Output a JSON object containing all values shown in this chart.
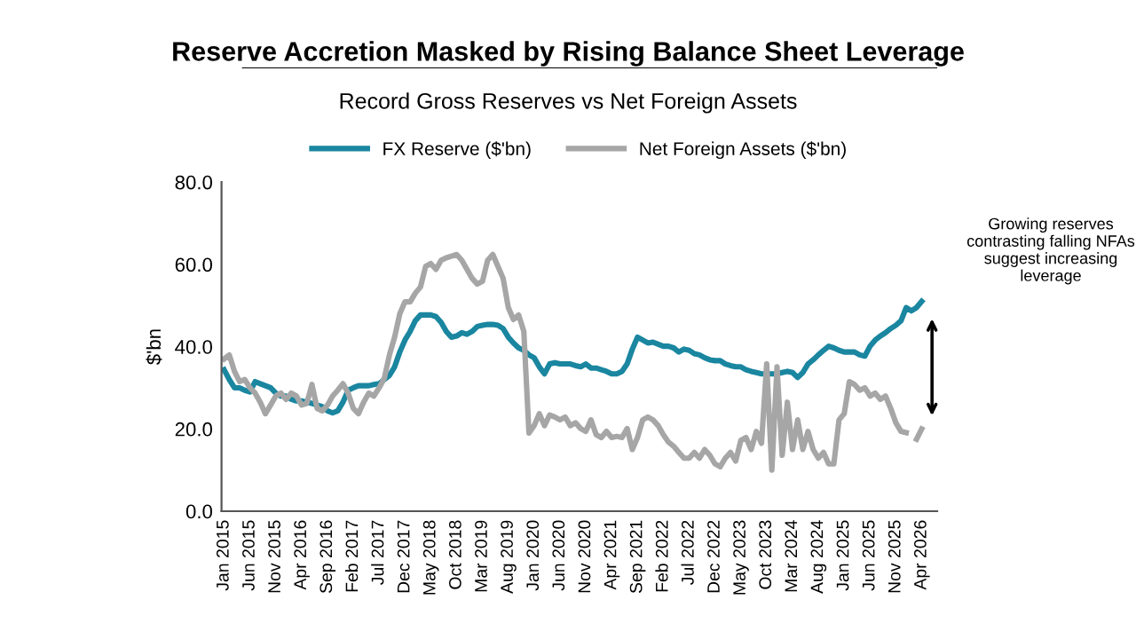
{
  "chart_data": {
    "type": "line",
    "title": "Reserve Accretion Masked by Rising Balance Sheet Leverage",
    "subtitle": "Record Gross Reserves vs Net Foreign Assets",
    "ylabel": "$'bn",
    "categories": [
      "Jan 2015",
      null,
      null,
      null,
      null,
      "Jun 2015",
      null,
      null,
      null,
      null,
      "Nov 2015",
      null,
      null,
      null,
      null,
      "Apr 2016",
      null,
      null,
      null,
      null,
      "Sep 2016",
      null,
      null,
      null,
      null,
      "Feb 2017",
      null,
      null,
      null,
      null,
      "Jul 2017",
      null,
      null,
      null,
      null,
      "Dec 2017",
      null,
      null,
      null,
      null,
      "May 2018",
      null,
      null,
      null,
      null,
      "Oct 2018",
      null,
      null,
      null,
      null,
      "Mar 2019",
      null,
      null,
      null,
      null,
      "Aug 2019",
      null,
      null,
      null,
      null,
      "Jan 2020",
      null,
      null,
      null,
      null,
      "Jun 2020",
      null,
      null,
      null,
      null,
      "Nov 2020",
      null,
      null,
      null,
      null,
      "Apr 2021",
      null,
      null,
      null,
      null,
      "Sep 2021",
      null,
      null,
      null,
      null,
      "Feb 2022",
      null,
      null,
      null,
      null,
      "Jul 2022",
      null,
      null,
      null,
      null,
      "Dec 2022",
      null,
      null,
      null,
      null,
      "May 2023",
      null,
      null,
      null,
      null,
      "Oct 2023",
      null,
      null,
      null,
      null,
      "Mar 2024",
      null,
      null,
      null,
      null,
      "Aug 2024",
      null,
      null,
      null,
      null,
      "Jan 2025",
      null,
      null,
      null,
      null,
      "Jun 2025",
      null,
      null,
      null,
      null,
      "Nov 2025",
      null,
      null,
      null,
      null,
      "Apr 2026"
    ],
    "series": [
      {
        "name": "FX Reserve ($'bn)",
        "color": "#1a86a0",
        "values": [
          34.4,
          32,
          30,
          30,
          29.4,
          29,
          31.5,
          31,
          30.5,
          30,
          28.7,
          28,
          28,
          27.2,
          26.8,
          26.8,
          26.5,
          26.2,
          25.8,
          25.4,
          24.4,
          23.9,
          24.4,
          26.5,
          29.4,
          30,
          30.5,
          30.5,
          30.5,
          30.8,
          31,
          32,
          33,
          35.1,
          38.7,
          41.6,
          43.7,
          46.3,
          47.7,
          47.7,
          47.7,
          47.3,
          45.9,
          43.7,
          42.3,
          42.6,
          43.4,
          43,
          43.7,
          44.9,
          45.2,
          45.4,
          45.4,
          45.2,
          44.4,
          42.3,
          40.9,
          39.7,
          39.1,
          38,
          37.3,
          35.1,
          33.4,
          35.8,
          36.1,
          35.8,
          35.8,
          35.8,
          35.4,
          35.1,
          35.8,
          34.8,
          34.8,
          34.4,
          34,
          33.4,
          33.4,
          34,
          35.8,
          39.4,
          42.3,
          41.6,
          40.9,
          41.1,
          40.6,
          40.1,
          40.1,
          39.7,
          38.7,
          39.4,
          39.1,
          38.3,
          38,
          37.3,
          36.8,
          36.6,
          36.6,
          35.8,
          35.4,
          35.1,
          35.1,
          34.4,
          34,
          33.7,
          33.4,
          33.4,
          33.4,
          33.4,
          33.7,
          34,
          33.7,
          32.5,
          33.7,
          35.8,
          36.8,
          38,
          39.1,
          40.1,
          39.7,
          39.1,
          38.7,
          38.7,
          38.7,
          38,
          37.7,
          40.1,
          41.6,
          42.6,
          43.4,
          44.4,
          45.2,
          46.3,
          49.5,
          48.7,
          49.5,
          51
        ]
      },
      {
        "name": "Net Foreign Assets ($'bn)",
        "color": "#a6a6a6",
        "values": [
          37,
          38,
          34,
          31.5,
          32,
          30,
          28.7,
          26.5,
          23.7,
          25.8,
          28,
          28.7,
          27.2,
          28.7,
          28,
          25.8,
          26.2,
          30.8,
          25,
          24.4,
          25.8,
          28,
          29.4,
          31,
          28.7,
          25,
          23.7,
          26.5,
          28.7,
          28,
          30,
          32.3,
          38,
          42.3,
          48,
          50.9,
          50.9,
          53,
          54.5,
          59.5,
          60.2,
          58.8,
          61,
          61.6,
          62,
          62.4,
          61,
          58.8,
          56.6,
          55.2,
          55.9,
          61,
          62.4,
          59.5,
          56.6,
          49.5,
          46.6,
          47.7,
          43.7,
          19,
          20.8,
          23.7,
          20.8,
          23.4,
          22.9,
          22.2,
          22.9,
          20.8,
          21.5,
          20.1,
          19.4,
          22.2,
          18.6,
          17.9,
          19.4,
          17.9,
          18.2,
          17.9,
          20.1,
          15,
          17.9,
          22.2,
          22.9,
          22.2,
          20.8,
          18.6,
          16.8,
          15.8,
          14.3,
          12.9,
          12.9,
          14.3,
          12.9,
          15,
          13.6,
          11.5,
          10.8,
          12.9,
          14.3,
          12.2,
          17.2,
          17.9,
          15,
          19.4,
          16.5,
          35.8,
          10,
          35.1,
          13.6,
          26.5,
          15,
          22.2,
          15,
          19.4,
          15,
          12.9,
          14.3,
          11.5,
          11.5,
          22.2,
          23.7,
          31.5,
          30.8,
          29.4,
          30,
          28,
          28.7,
          27.2,
          28,
          25,
          21.5,
          19.4,
          19.1,
          null,
          17.5,
          20
        ]
      }
    ],
    "ylim": [
      0,
      80
    ],
    "yticks": [
      {
        "value": 0,
        "label": "0.0"
      },
      {
        "value": 20,
        "label": "20.0"
      },
      {
        "value": 40,
        "label": "40.0"
      },
      {
        "value": 60,
        "label": "60.0"
      },
      {
        "value": 80,
        "label": "80.0"
      }
    ],
    "annotations": [
      "Growing reserves contrasting falling NFAs suggest increasing leverage"
    ],
    "legend": "top",
    "grid": false,
    "marker": "none",
    "line_style": "solid"
  }
}
